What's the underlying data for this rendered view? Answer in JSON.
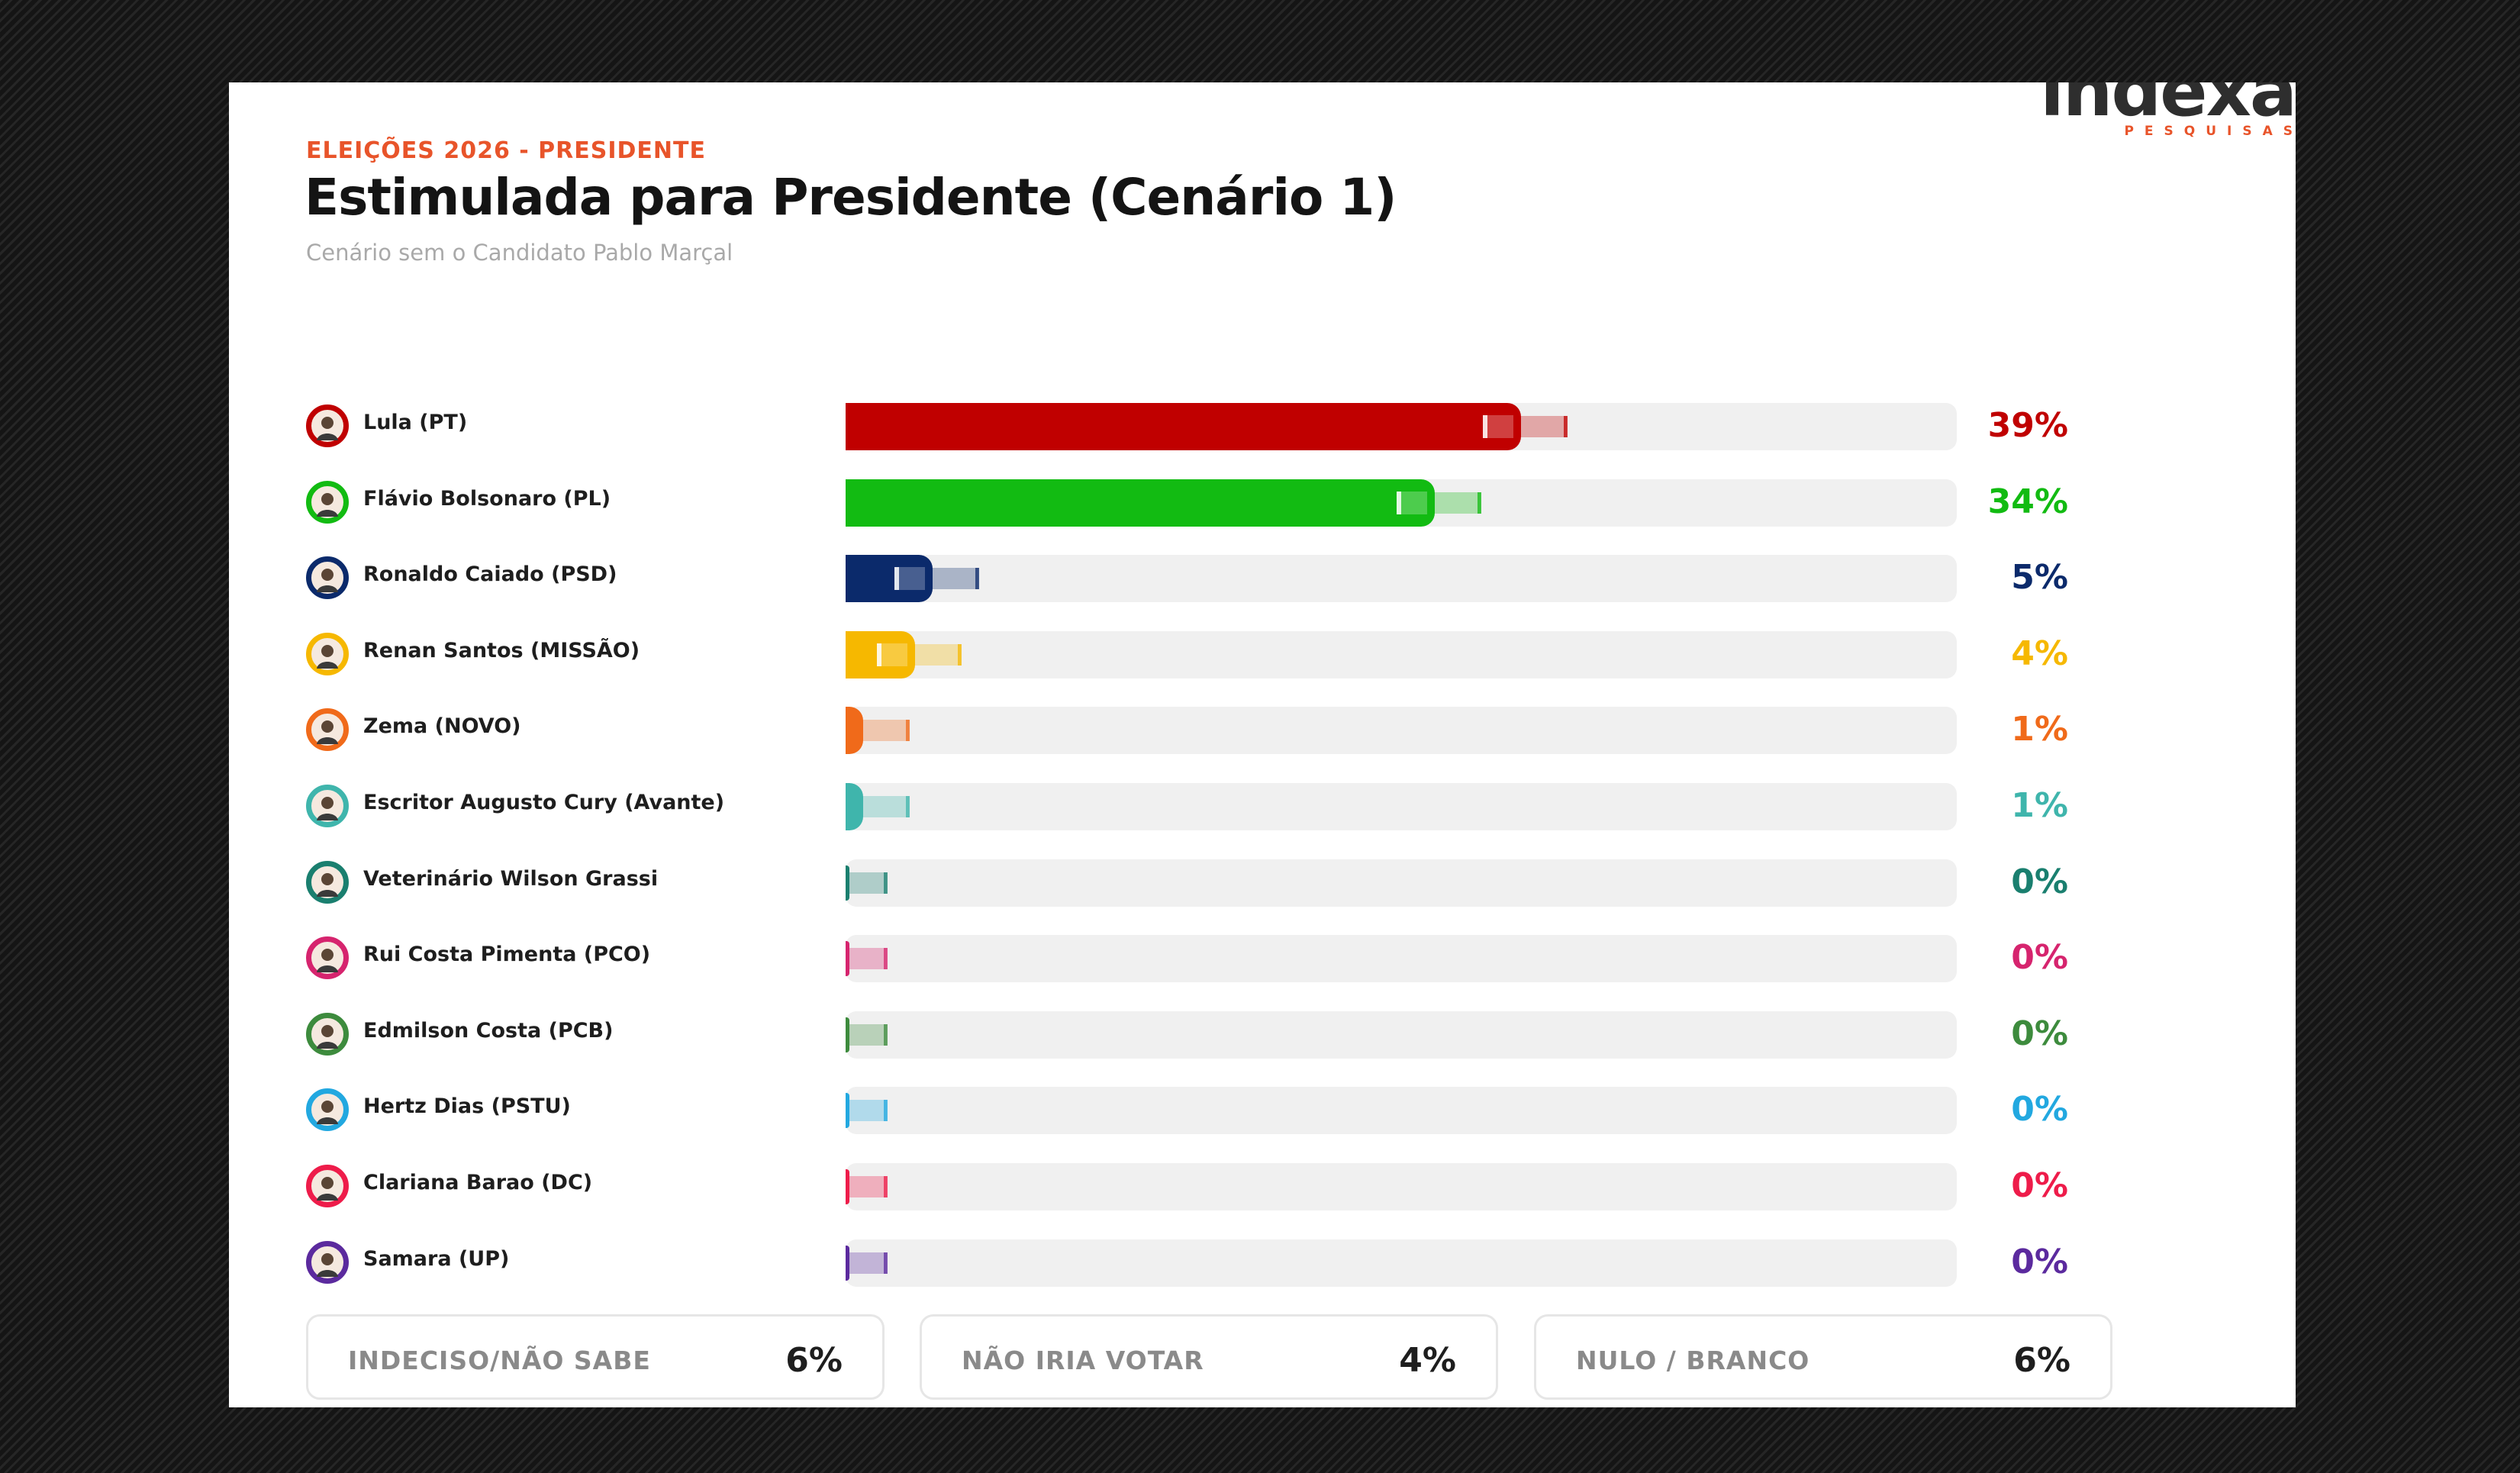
{
  "header": {
    "kicker": "ELEIÇÕES 2026 - PRESIDENTE",
    "title": "Estimulada para Presidente (Cenário 1)",
    "subtitle": "Cenário sem o Candidato Pablo Marçal"
  },
  "logo": {
    "word": "indexa",
    "sub": "PESQUISAS"
  },
  "chart_data": {
    "type": "bar",
    "orientation": "horizontal",
    "title": "Estimulada para Presidente (Cenário 1)",
    "subtitle": "Cenário sem o Candidato Pablo Marçal",
    "xlim": [
      0,
      100
    ],
    "categories": [
      "Lula (PT)",
      "Flávio Bolsonaro (PL)",
      "Ronaldo Caiado (PSD)",
      "Renan Santos (MISSÃO)",
      "Zema (NOVO)",
      "Escritor Augusto Cury (Avante)",
      "Veterinário Wilson Grassi",
      "Rui Costa Pimenta (PCO)",
      "Edmilson Costa (PCB)",
      "Hertz Dias (PSTU)",
      "Clariana Barao (DC)",
      "Samara (UP)"
    ],
    "values": [
      39,
      34,
      5,
      4,
      1,
      1,
      0,
      0,
      0,
      0,
      0,
      0
    ],
    "labels": [
      "39%",
      "34%",
      "5%",
      "4%",
      "1%",
      "1%",
      "0%",
      "0%",
      "0%",
      "0%",
      "0%",
      "0%"
    ],
    "colors": [
      "#c00000",
      "#12bb12",
      "#0b2a6b",
      "#f6b800",
      "#f06a1a",
      "#3fb5ac",
      "#1a7f6f",
      "#d6246e",
      "#3d8b3d",
      "#22a8e0",
      "#ee1c4a",
      "#5b2a9e"
    ]
  },
  "summary": [
    {
      "label": "INDECISO/NÃO SABE",
      "value": "6%"
    },
    {
      "label": "NÃO IRIA VOTAR",
      "value": "4%"
    },
    {
      "label": "NULO / BRANCO",
      "value": "6%"
    }
  ]
}
